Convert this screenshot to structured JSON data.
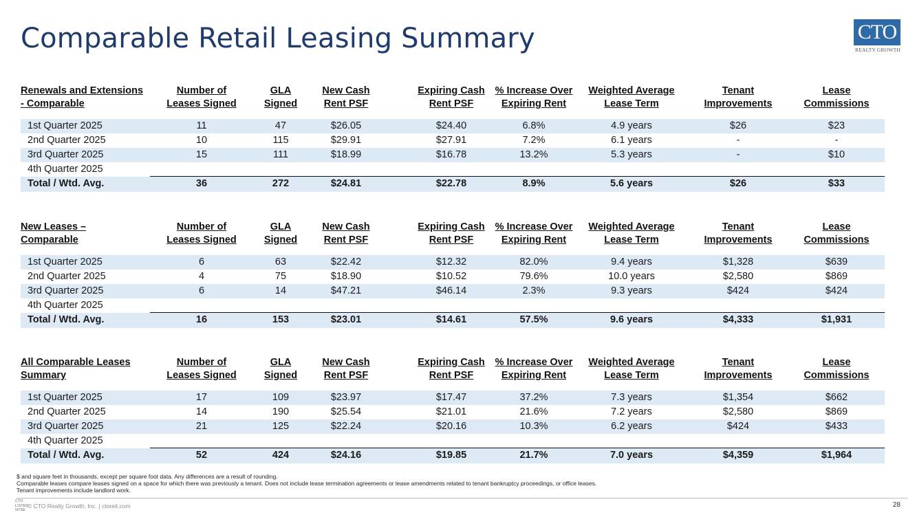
{
  "title": "Comparable Retail Leasing Summary",
  "logo": {
    "main": "CTO",
    "sub": "REALTY GROWTH"
  },
  "columns": {
    "leases": [
      "Number of",
      "Leases Signed"
    ],
    "gla": [
      "GLA",
      "Signed"
    ],
    "newrent": [
      "New Cash",
      "Rent PSF"
    ],
    "exprent": [
      "Expiring Cash",
      "Rent PSF"
    ],
    "increase": [
      "% Increase Over",
      "Expiring Rent"
    ],
    "term": [
      "Weighted Average",
      "Lease Term"
    ],
    "ti": [
      "Tenant",
      "Improvements"
    ],
    "lc": [
      "Lease",
      "Commissions"
    ]
  },
  "sections": [
    {
      "heading": [
        "Renewals and Extensions",
        "- Comparable"
      ],
      "rows": [
        [
          "1st Quarter 2025",
          "11",
          "47",
          "$26.05",
          "$24.40",
          "6.8%",
          "4.9 years",
          "$26",
          "$23"
        ],
        [
          "2nd Quarter 2025",
          "10",
          "115",
          "$29.91",
          "$27.91",
          "7.2%",
          "6.1 years",
          "-",
          "-"
        ],
        [
          "3rd Quarter 2025",
          "15",
          "111",
          "$18.99",
          "$16.78",
          "13.2%",
          "5.3 years",
          "-",
          "$10"
        ],
        [
          "4th Quarter 2025",
          "",
          "",
          "",
          "",
          "",
          "",
          "",
          ""
        ]
      ],
      "total": [
        "Total / Wtd. Avg.",
        "36",
        "272",
        "$24.81",
        "$22.78",
        "8.9%",
        "5.6 years",
        "$26",
        "$33"
      ]
    },
    {
      "heading": [
        "New Leases –",
        "Comparable"
      ],
      "rows": [
        [
          "1st Quarter 2025",
          "6",
          "63",
          "$22.42",
          "$12.32",
          "82.0%",
          "9.4 years",
          "$1,328",
          "$639"
        ],
        [
          "2nd Quarter 2025",
          "4",
          "75",
          "$18.90",
          "$10.52",
          "79.6%",
          "10.0 years",
          "$2,580",
          "$869"
        ],
        [
          "3rd Quarter 2025",
          "6",
          "14",
          "$47.21",
          "$46.14",
          "2.3%",
          "9.3 years",
          "$424",
          "$424"
        ],
        [
          "4th Quarter 2025",
          "",
          "",
          "",
          "",
          "",
          "",
          "",
          ""
        ]
      ],
      "total": [
        "Total / Wtd. Avg.",
        "16",
        "153",
        "$23.01",
        "$14.61",
        "57.5%",
        "9.6 years",
        "$4,333",
        "$1,931"
      ]
    },
    {
      "heading": [
        "All Comparable Leases",
        "Summary"
      ],
      "rows": [
        [
          "1st Quarter 2025",
          "17",
          "109",
          "$23.97",
          "$17.47",
          "37.2%",
          "7.3 years",
          "$1,354",
          "$662"
        ],
        [
          "2nd Quarter 2025",
          "14",
          "190",
          "$25.54",
          "$21.01",
          "21.6%",
          "7.2 years",
          "$2,580",
          "$869"
        ],
        [
          "3rd Quarter 2025",
          "21",
          "125",
          "$22.24",
          "$20.16",
          "10.3%",
          "6.2 years",
          "$424",
          "$433"
        ],
        [
          "4th Quarter 2025",
          "",
          "",
          "",
          "",
          "",
          "",
          "",
          ""
        ]
      ],
      "total": [
        "Total / Wtd. Avg.",
        "52",
        "424",
        "$24.16",
        "$19.85",
        "21.7%",
        "7.0 years",
        "$4,359",
        "$1,964"
      ]
    }
  ],
  "notes": [
    "$ and square feet in thousands, except per square foot data. Any differences are a result of rounding.",
    "Comparable leases compare leases signed on a space for which there was previously a tenant. Does not include lease termination agreements or lease amendments related to tenant bankruptcy proceedings, or office leases.",
    "Tenant improvements include landlord work."
  ],
  "footer": {
    "logo_lines": [
      "CTO",
      "LISTED",
      "NYSE"
    ],
    "text": "© CTO Realty Growth, Inc. | ctoreit.com",
    "page": "28"
  }
}
